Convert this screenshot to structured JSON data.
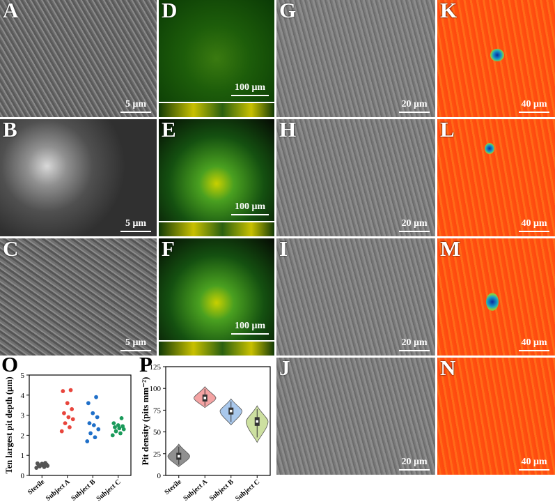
{
  "panels": {
    "A": {
      "label": "A",
      "scale": "5 μm"
    },
    "B": {
      "label": "B",
      "scale": "5 μm"
    },
    "C": {
      "label": "C",
      "scale": "5 μm"
    },
    "D": {
      "label": "D",
      "scale": "100 μm"
    },
    "E": {
      "label": "E",
      "scale": "100 μm"
    },
    "F": {
      "label": "F",
      "scale": "100 μm"
    },
    "G": {
      "label": "G",
      "scale": "20 μm"
    },
    "H": {
      "label": "H",
      "scale": "20 μm"
    },
    "I": {
      "label": "I",
      "scale": "20 μm"
    },
    "J": {
      "label": "J",
      "scale": "20 μm"
    },
    "K": {
      "label": "K",
      "scale": "40 μm"
    },
    "L": {
      "label": "L",
      "scale": "40 μm"
    },
    "M": {
      "label": "M",
      "scale": "40 μm"
    },
    "N": {
      "label": "N",
      "scale": "40 μm"
    },
    "O": {
      "label": "O"
    },
    "P": {
      "label": "P"
    }
  },
  "chart_data": [
    {
      "type": "scatter",
      "panel": "O",
      "ylabel": "Ten largest pit depth (μm)",
      "categories": [
        "Sterile",
        "Subject A",
        "Subject B",
        "Subject C"
      ],
      "yticks": [
        0,
        1,
        2,
        3,
        4,
        5
      ],
      "ylim": [
        0,
        5
      ],
      "colors": [
        "#555555",
        "#e8453c",
        "#1f6fc8",
        "#1a9a5a"
      ],
      "series": [
        {
          "values": [
            0.38,
            0.42,
            0.45,
            0.48,
            0.5,
            0.52,
            0.55,
            0.58,
            0.6,
            0.62
          ]
        },
        {
          "values": [
            2.2,
            2.4,
            2.6,
            2.8,
            2.9,
            3.1,
            3.3,
            3.6,
            4.2,
            4.25
          ]
        },
        {
          "values": [
            1.7,
            1.9,
            2.1,
            2.3,
            2.5,
            2.6,
            2.9,
            3.1,
            3.6,
            3.9
          ]
        },
        {
          "values": [
            2.0,
            2.1,
            2.2,
            2.3,
            2.35,
            2.4,
            2.45,
            2.5,
            2.6,
            2.85
          ]
        }
      ]
    },
    {
      "type": "violin",
      "panel": "P",
      "ylabel": "Pit density (pits mm⁻²)",
      "categories": [
        "Sterile",
        "Subject A",
        "Subject B",
        "Subject C"
      ],
      "yticks": [
        0,
        25,
        50,
        75,
        100,
        125
      ],
      "ylim": [
        0,
        125
      ],
      "fill_colors": [
        "#909090",
        "#f4a3a3",
        "#a9c8ec",
        "#cde0a0"
      ],
      "series": [
        {
          "median": 22,
          "q1": 18,
          "q3": 26,
          "min": 10,
          "max": 36
        },
        {
          "median": 89,
          "q1": 85,
          "q3": 93,
          "min": 78,
          "max": 102
        },
        {
          "median": 74,
          "q1": 70,
          "q3": 78,
          "min": 58,
          "max": 88
        },
        {
          "median": 62,
          "q1": 57,
          "q3": 67,
          "min": 38,
          "max": 80
        }
      ]
    }
  ]
}
